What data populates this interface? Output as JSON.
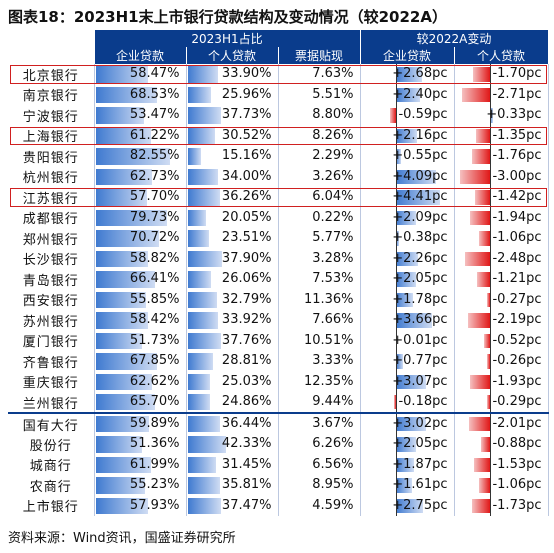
{
  "title": "图表18：2023H1末上市银行贷款结构及变动情况（较2022A）",
  "headers": {
    "group1": "2023H1占比",
    "group2": "较2022A变动",
    "col1": "企业贷款",
    "col2": "个人贷款",
    "col3": "票据贴现",
    "col4": "企业贷款",
    "col5": "个人贷款"
  },
  "rows": [
    {
      "bank": "北京银行",
      "corp": "58.47%",
      "corp_v": 58.47,
      "pers": "33.90%",
      "pers_v": 33.9,
      "bill": "7.63%",
      "dc": "+2.68pc",
      "dc_v": 2.68,
      "dp": "-1.70pc",
      "dp_v": -1.7
    },
    {
      "bank": "南京银行",
      "corp": "68.53%",
      "corp_v": 68.53,
      "pers": "25.96%",
      "pers_v": 25.96,
      "bill": "5.51%",
      "dc": "+2.40pc",
      "dc_v": 2.4,
      "dp": "-2.71pc",
      "dp_v": -2.71
    },
    {
      "bank": "宁波银行",
      "corp": "53.47%",
      "corp_v": 53.47,
      "pers": "37.73%",
      "pers_v": 37.73,
      "bill": "8.80%",
      "dc": "-0.59pc",
      "dc_v": -0.59,
      "dp": "+0.33pc",
      "dp_v": 0.33
    },
    {
      "bank": "上海银行",
      "corp": "61.22%",
      "corp_v": 61.22,
      "pers": "30.52%",
      "pers_v": 30.52,
      "bill": "8.26%",
      "dc": "+2.16pc",
      "dc_v": 2.16,
      "dp": "-1.35pc",
      "dp_v": -1.35
    },
    {
      "bank": "贵阳银行",
      "corp": "82.55%",
      "corp_v": 82.55,
      "pers": "15.16%",
      "pers_v": 15.16,
      "bill": "2.29%",
      "dc": "+0.55pc",
      "dc_v": 0.55,
      "dp": "-1.76pc",
      "dp_v": -1.76
    },
    {
      "bank": "杭州银行",
      "corp": "62.73%",
      "corp_v": 62.73,
      "pers": "34.00%",
      "pers_v": 34.0,
      "bill": "3.26%",
      "dc": "+4.09pc",
      "dc_v": 4.09,
      "dp": "-3.00pc",
      "dp_v": -3.0
    },
    {
      "bank": "江苏银行",
      "corp": "57.70%",
      "corp_v": 57.7,
      "pers": "36.26%",
      "pers_v": 36.26,
      "bill": "6.04%",
      "dc": "+4.41pc",
      "dc_v": 4.41,
      "dp": "-1.42pc",
      "dp_v": -1.42
    },
    {
      "bank": "成都银行",
      "corp": "79.73%",
      "corp_v": 79.73,
      "pers": "20.05%",
      "pers_v": 20.05,
      "bill": "0.22%",
      "dc": "+2.09pc",
      "dc_v": 2.09,
      "dp": "-1.94pc",
      "dp_v": -1.94
    },
    {
      "bank": "郑州银行",
      "corp": "70.72%",
      "corp_v": 70.72,
      "pers": "23.51%",
      "pers_v": 23.51,
      "bill": "5.77%",
      "dc": "+0.38pc",
      "dc_v": 0.38,
      "dp": "-1.06pc",
      "dp_v": -1.06
    },
    {
      "bank": "长沙银行",
      "corp": "58.82%",
      "corp_v": 58.82,
      "pers": "37.90%",
      "pers_v": 37.9,
      "bill": "3.28%",
      "dc": "+2.26pc",
      "dc_v": 2.26,
      "dp": "-2.48pc",
      "dp_v": -2.48
    },
    {
      "bank": "青岛银行",
      "corp": "66.41%",
      "corp_v": 66.41,
      "pers": "26.06%",
      "pers_v": 26.06,
      "bill": "7.53%",
      "dc": "+2.05pc",
      "dc_v": 2.05,
      "dp": "-1.21pc",
      "dp_v": -1.21
    },
    {
      "bank": "西安银行",
      "corp": "55.85%",
      "corp_v": 55.85,
      "pers": "32.79%",
      "pers_v": 32.79,
      "bill": "11.36%",
      "dc": "+1.78pc",
      "dc_v": 1.78,
      "dp": "-0.27pc",
      "dp_v": -0.27
    },
    {
      "bank": "苏州银行",
      "corp": "58.42%",
      "corp_v": 58.42,
      "pers": "33.92%",
      "pers_v": 33.92,
      "bill": "7.66%",
      "dc": "+3.66pc",
      "dc_v": 3.66,
      "dp": "-2.19pc",
      "dp_v": -2.19
    },
    {
      "bank": "厦门银行",
      "corp": "51.73%",
      "corp_v": 51.73,
      "pers": "37.76%",
      "pers_v": 37.76,
      "bill": "10.51%",
      "dc": "+0.01pc",
      "dc_v": 0.01,
      "dp": "-0.52pc",
      "dp_v": -0.52
    },
    {
      "bank": "齐鲁银行",
      "corp": "67.85%",
      "corp_v": 67.85,
      "pers": "28.81%",
      "pers_v": 28.81,
      "bill": "3.33%",
      "dc": "+0.77pc",
      "dc_v": 0.77,
      "dp": "-0.26pc",
      "dp_v": -0.26
    },
    {
      "bank": "重庆银行",
      "corp": "62.62%",
      "corp_v": 62.62,
      "pers": "25.03%",
      "pers_v": 25.03,
      "bill": "12.35%",
      "dc": "+3.07pc",
      "dc_v": 3.07,
      "dp": "-1.93pc",
      "dp_v": -1.93
    },
    {
      "bank": "兰州银行",
      "corp": "65.70%",
      "corp_v": 65.7,
      "pers": "24.86%",
      "pers_v": 24.86,
      "bill": "9.44%",
      "dc": "-0.18pc",
      "dc_v": -0.18,
      "dp": "-0.29pc",
      "dp_v": -0.29
    },
    {
      "bank": "国有大行",
      "corp": "59.89%",
      "corp_v": 59.89,
      "pers": "36.44%",
      "pers_v": 36.44,
      "bill": "3.67%",
      "dc": "+3.02pc",
      "dc_v": 3.02,
      "dp": "-2.01pc",
      "dp_v": -2.01
    },
    {
      "bank": "股份行",
      "corp": "51.36%",
      "corp_v": 51.36,
      "pers": "42.33%",
      "pers_v": 42.33,
      "bill": "6.26%",
      "dc": "+2.05pc",
      "dc_v": 2.05,
      "dp": "-0.88pc",
      "dp_v": -0.88
    },
    {
      "bank": "城商行",
      "corp": "61.99%",
      "corp_v": 61.99,
      "pers": "31.45%",
      "pers_v": 31.45,
      "bill": "6.56%",
      "dc": "+1.87pc",
      "dc_v": 1.87,
      "dp": "-1.53pc",
      "dp_v": -1.53
    },
    {
      "bank": "农商行",
      "corp": "55.23%",
      "corp_v": 55.23,
      "pers": "35.81%",
      "pers_v": 35.81,
      "bill": "8.95%",
      "dc": "+1.61pc",
      "dc_v": 1.61,
      "dp": "-1.06pc",
      "dp_v": -1.06
    },
    {
      "bank": "上市银行",
      "corp": "57.93%",
      "corp_v": 57.93,
      "pers": "37.47%",
      "pers_v": 37.47,
      "bill": "4.59%",
      "dc": "+2.75pc",
      "dc_v": 2.75,
      "dp": "-1.73pc",
      "dp_v": -1.73
    }
  ],
  "highlighted_banks": [
    "北京银行",
    "上海银行",
    "江苏银行"
  ],
  "source": "资料来源：Wind资讯，国盛证券研究所",
  "colors": {
    "header_bg": "#0a3c8c",
    "bar_blue": "#3f7ad0",
    "bar_red": "#e01818",
    "highlight": "#d02020"
  }
}
